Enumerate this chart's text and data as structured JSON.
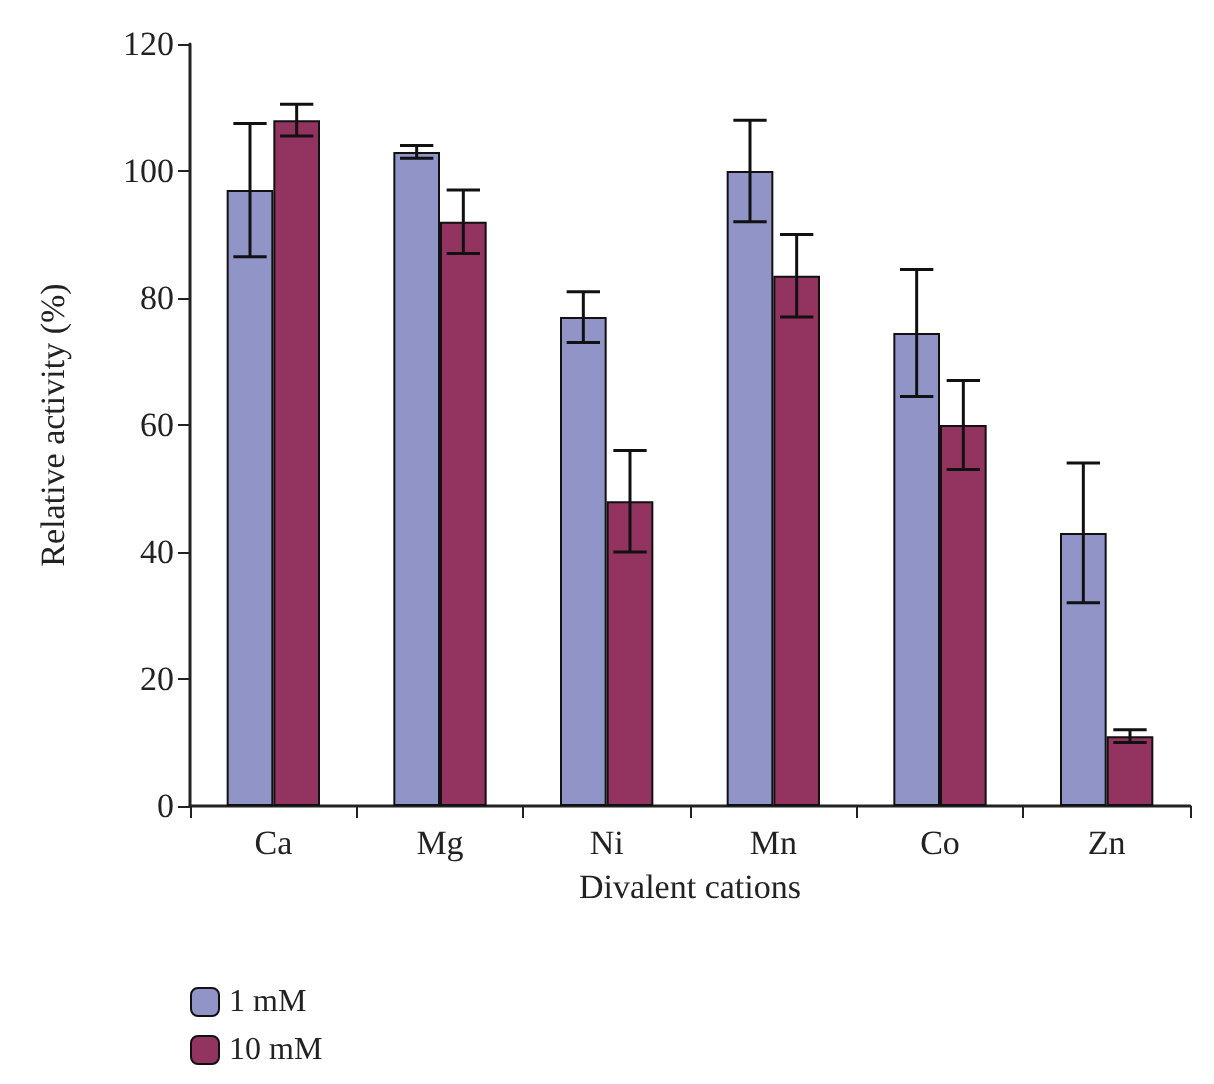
{
  "chart_data": {
    "type": "bar",
    "xlabel": "Divalent cations",
    "ylabel": "Relative activity (%)",
    "categories": [
      "Ca",
      "Mg",
      "Ni",
      "Mn",
      "Co",
      "Zn"
    ],
    "series": [
      {
        "name": "1 mM",
        "color": "#9194c6",
        "values": [
          97,
          103,
          77,
          100,
          74.5,
          43
        ],
        "errors": [
          10.5,
          1,
          4,
          8,
          10,
          11
        ]
      },
      {
        "name": "10 mM",
        "color": "#93335f",
        "values": [
          108,
          92,
          48,
          83.5,
          60,
          11
        ],
        "errors": [
          2.5,
          5,
          8,
          6.5,
          7,
          1
        ]
      }
    ],
    "ylim": [
      0,
      120
    ],
    "yticks": [
      0,
      20,
      40,
      60,
      80,
      100,
      120
    ],
    "grid": false,
    "legend": "bottom left"
  }
}
